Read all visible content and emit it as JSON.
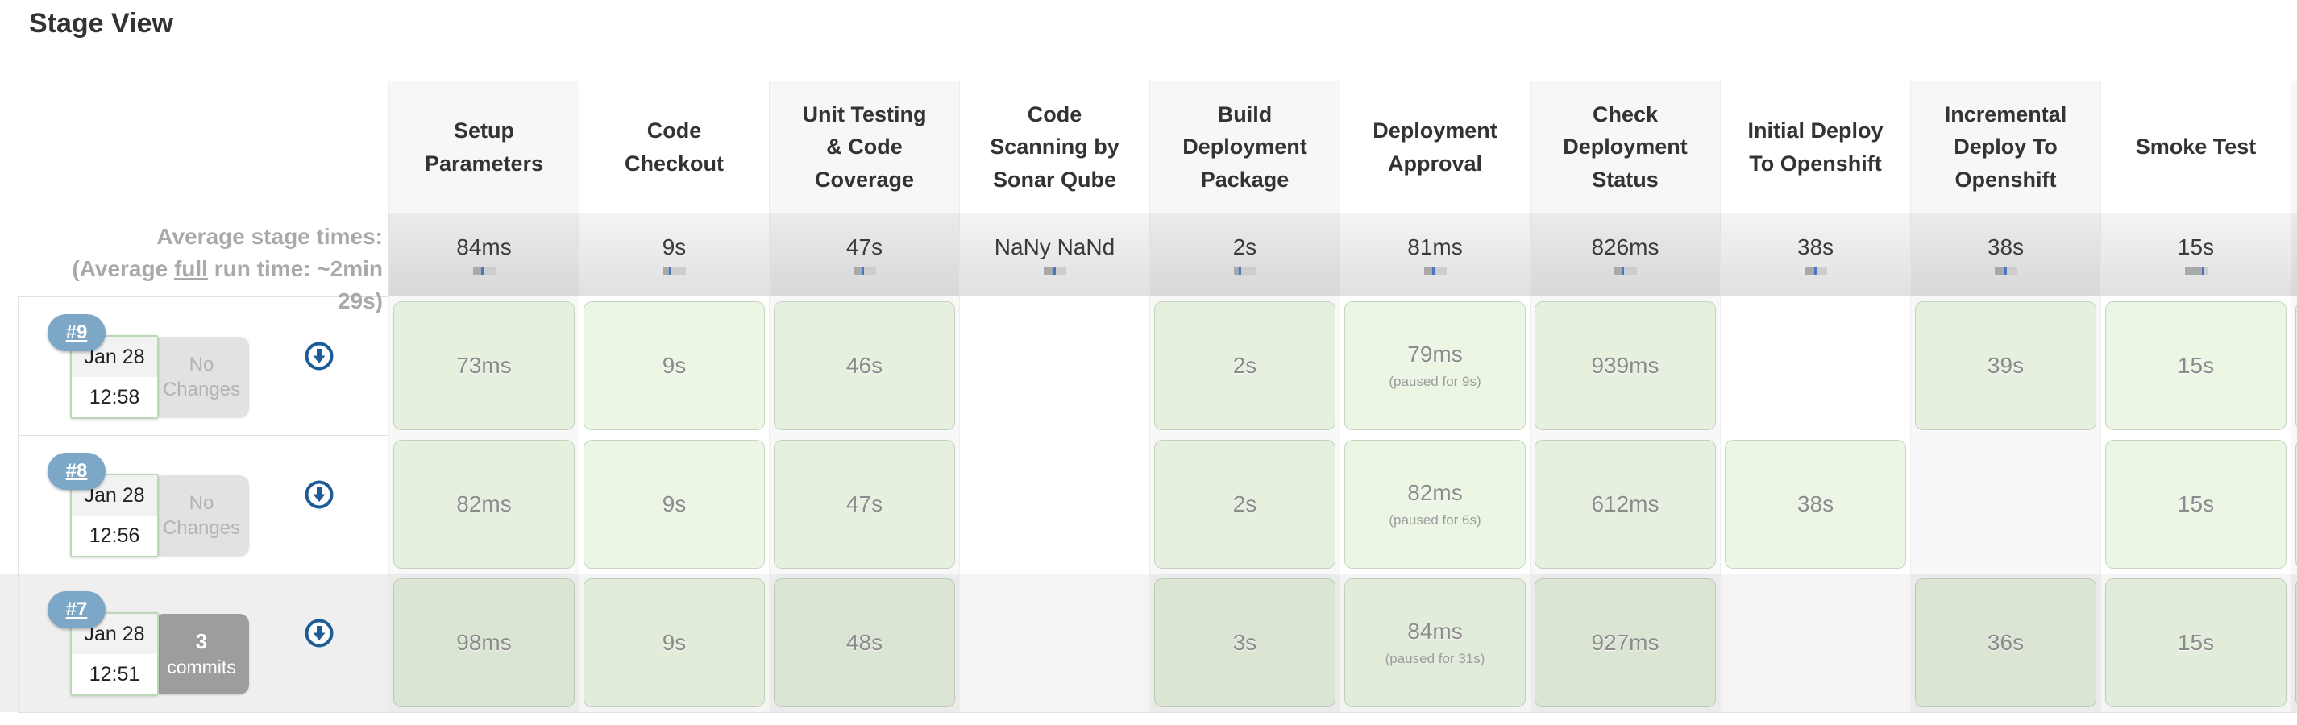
{
  "title": "Stage View",
  "average": {
    "label_line1": "Average stage times:",
    "label_line2_pre": "(Average ",
    "label_line2_em": "full",
    "label_line2_post": " run time: ~2min",
    "label_line3": "29s)"
  },
  "colors": {
    "badge_blue": "#7da7c7",
    "icon_blue": "#1d5c97",
    "success_green_fill": "rgba(136,196,92,0.16)",
    "bar_tick_blue": "#4a74c9"
  },
  "stages": [
    {
      "name": "Setup Parameters",
      "avg": "84ms",
      "bar": 0.45
    },
    {
      "name": "Code Checkout",
      "avg": "9s",
      "bar": 0.35
    },
    {
      "name": "Unit Testing & Code Coverage",
      "avg": "47s",
      "bar": 0.45
    },
    {
      "name": "Code Scanning by Sonar Qube",
      "avg": "NaNy NaNd",
      "bar": 0.5
    },
    {
      "name": "Build Deployment Package",
      "avg": "2s",
      "bar": 0.3
    },
    {
      "name": "Deployment Approval",
      "avg": "81ms",
      "bar": 0.45
    },
    {
      "name": "Check Deployment Status",
      "avg": "826ms",
      "bar": 0.4
    },
    {
      "name": "Initial Deploy To Openshift",
      "avg": "38s",
      "bar": 0.5
    },
    {
      "name": "Incremental Deploy To Openshift",
      "avg": "38s",
      "bar": 0.5
    },
    {
      "name": "Smoke Test",
      "avg": "15s",
      "bar": 0.85
    }
  ],
  "builds": [
    {
      "id": "#9",
      "date": "Jan 28",
      "time": "12:58",
      "selected": false,
      "changes": {
        "type": "none",
        "line1": "No",
        "line2": "Changes"
      },
      "cells": [
        {
          "t": "73ms"
        },
        {
          "t": "9s"
        },
        {
          "t": "46s"
        },
        null,
        {
          "t": "2s"
        },
        {
          "t": "79ms",
          "note": "(paused for 9s)"
        },
        {
          "t": "939ms"
        },
        null,
        {
          "t": "39s"
        },
        {
          "t": "15s"
        }
      ]
    },
    {
      "id": "#8",
      "date": "Jan 28",
      "time": "12:56",
      "selected": false,
      "changes": {
        "type": "none",
        "line1": "No",
        "line2": "Changes"
      },
      "cells": [
        {
          "t": "82ms"
        },
        {
          "t": "9s"
        },
        {
          "t": "47s"
        },
        null,
        {
          "t": "2s"
        },
        {
          "t": "82ms",
          "note": "(paused for 6s)"
        },
        {
          "t": "612ms"
        },
        {
          "t": "38s"
        },
        null,
        {
          "t": "15s"
        }
      ]
    },
    {
      "id": "#7",
      "date": "Jan 28",
      "time": "12:51",
      "selected": true,
      "changes": {
        "type": "commits",
        "count": "3",
        "word": "commits"
      },
      "cells": [
        {
          "t": "98ms"
        },
        {
          "t": "9s"
        },
        {
          "t": "48s"
        },
        null,
        {
          "t": "3s"
        },
        {
          "t": "84ms",
          "note": "(paused for 31s)"
        },
        {
          "t": "927ms"
        },
        null,
        {
          "t": "36s"
        },
        {
          "t": "15s"
        }
      ]
    }
  ]
}
